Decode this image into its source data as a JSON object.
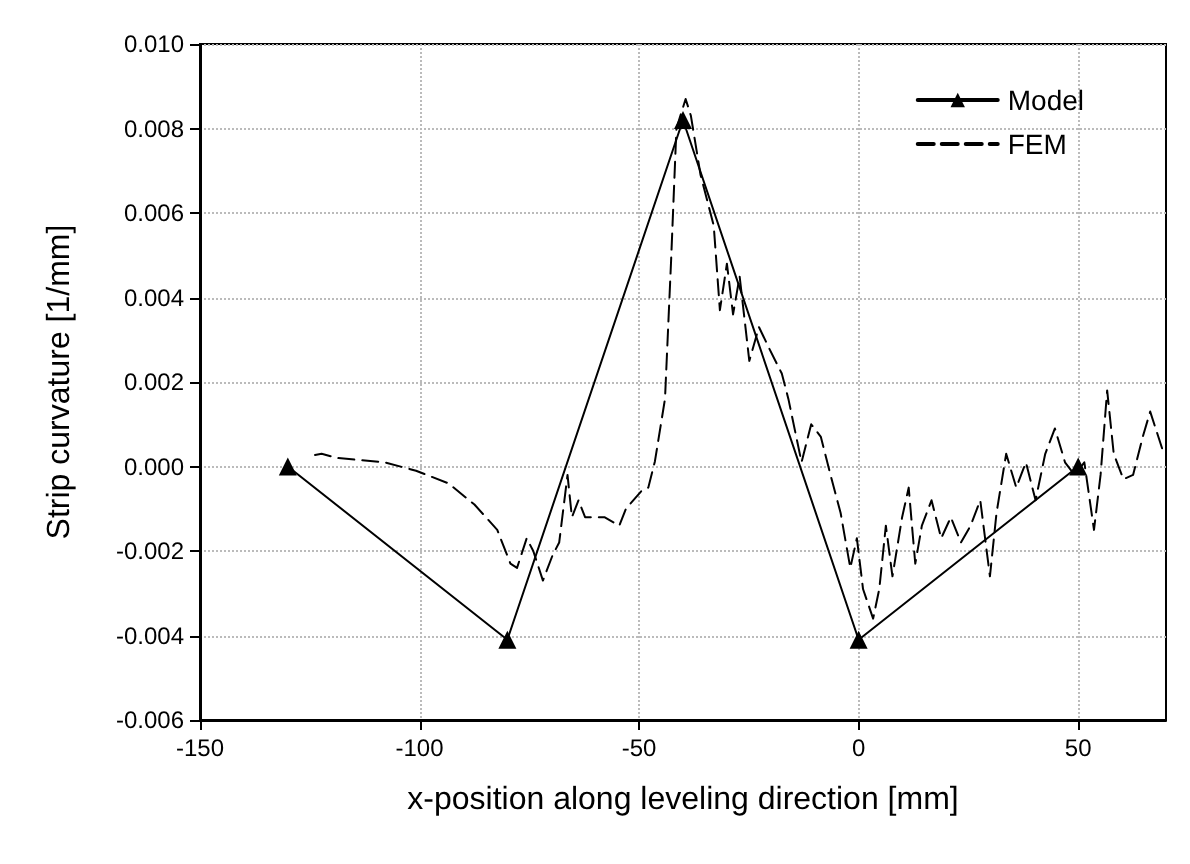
{
  "chart_data": {
    "type": "line",
    "xlabel": "x-position along leveling direction [mm]",
    "ylabel": "Strip curvature [1/mm]",
    "xlim": [
      -150,
      70
    ],
    "xticks": [
      -150,
      -100,
      -50,
      0,
      50
    ],
    "ylim": [
      -0.006,
      0.01
    ],
    "yticks": [
      {
        "value": -0.006,
        "label": "-0.006"
      },
      {
        "value": -0.004,
        "label": "-0.004"
      },
      {
        "value": -0.002,
        "label": "-0.002"
      },
      {
        "value": 0,
        "label": "0.000"
      },
      {
        "value": 0.002,
        "label": "0.002"
      },
      {
        "value": 0.004,
        "label": "0.004"
      },
      {
        "value": 0.006,
        "label": "0.006"
      },
      {
        "value": 0.008,
        "label": "0.008"
      },
      {
        "value": 0.01,
        "label": "0.010"
      }
    ],
    "grid": true,
    "legend": "top right",
    "series": [
      {
        "name": "Model",
        "color": "#000000",
        "marker": "triangle",
        "line_style": "solid",
        "x": [
          -130,
          -80,
          -40,
          0,
          50
        ],
        "values": [
          0,
          -0.0041,
          0.0082,
          -0.0041,
          0
        ]
      },
      {
        "name": "FEM",
        "color": "#000000",
        "marker": "none",
        "line_style": "dashed",
        "x": [
          -123.8,
          -122.3,
          -118.6,
          -108,
          -100.8,
          -93.4,
          -87.5,
          -82.3,
          -79.3,
          -77.8,
          -75.6,
          -74.1,
          -71.9,
          -69.7,
          -68.2,
          -66.3,
          -65.3,
          -63.8,
          -62.3,
          -57.9,
          -54.5,
          -53,
          -49.3,
          -47.9,
          -46.4,
          -44.1,
          -42.7,
          -41.5,
          -39.4,
          -38.2,
          -36,
          -33,
          -31.6,
          -30,
          -28.6,
          -27.1,
          -24.9,
          -22.7,
          -20.4,
          -17.5,
          -16,
          -13,
          -10.8,
          -8.6,
          -6.4,
          -4.1,
          -1.9,
          -0.4,
          1,
          3.3,
          4.7,
          6.2,
          7.7,
          9.9,
          11.4,
          12.9,
          14.4,
          16.6,
          18.8,
          21,
          23.3,
          25.5,
          27.7,
          29.9,
          31.4,
          33.6,
          35.9,
          38.1,
          40.3,
          42.5,
          44.7,
          47,
          49.2,
          51.4,
          53.6,
          55.1,
          56.6,
          58.1,
          60.3,
          62.5,
          64.7,
          66.4,
          69.2
        ],
        "values": [
          0.00027,
          0.0003,
          0.0002,
          0.0001,
          -0.0001,
          -0.0004,
          -0.0009,
          -0.0015,
          -0.0023,
          -0.0024,
          -0.0017,
          -0.002,
          -0.0027,
          -0.0021,
          -0.0018,
          -0.0002,
          -0.0012,
          -0.0008,
          -0.0012,
          -0.0012,
          -0.0014,
          -0.001,
          -0.00056,
          -0.0005,
          0.00012,
          0.0016,
          0.0049,
          0.008,
          0.0087,
          0.0083,
          0.0069,
          0.0057,
          0.0037,
          0.0048,
          0.0036,
          0.0045,
          0.0025,
          0.0033,
          0.0028,
          0.0022,
          0.0016,
          0.0001,
          0.001,
          0.0007,
          -0.0002,
          -0.0011,
          -0.0024,
          -0.0017,
          -0.0029,
          -0.0036,
          -0.0029,
          -0.0014,
          -0.0026,
          -0.0012,
          -0.0005,
          -0.0023,
          -0.0014,
          -0.0008,
          -0.0017,
          -0.0012,
          -0.0018,
          -0.0014,
          -0.0008,
          -0.0026,
          -0.0011,
          0.0003,
          -0.0005,
          0.0001,
          -0.0008,
          0.0003,
          0.0009,
          0.0001,
          -0.0002,
          0.0001,
          -0.0015,
          -0.0002,
          0.0018,
          0.0003,
          -0.0003,
          -0.0002,
          0.0007,
          0.0013,
          0.0004
        ]
      }
    ]
  }
}
